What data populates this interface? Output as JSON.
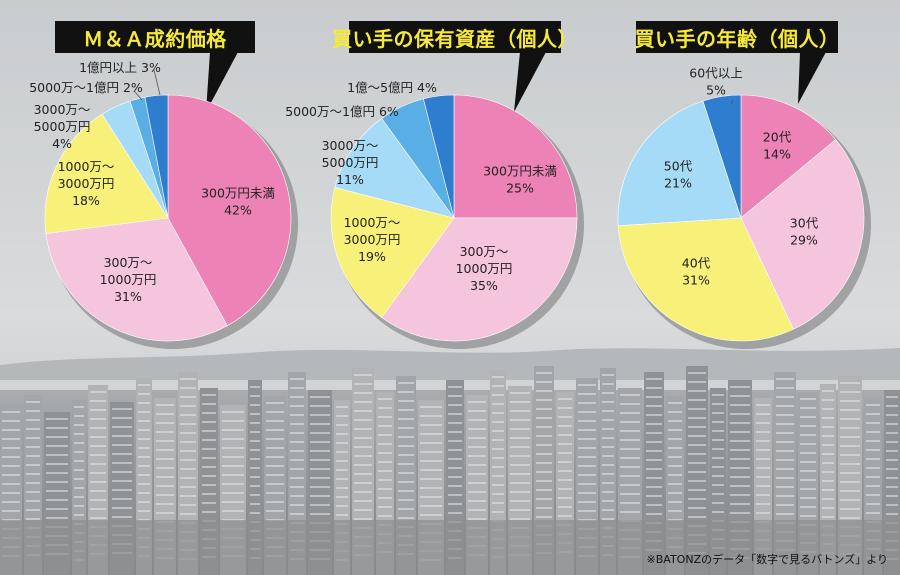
{
  "colors": {
    "pink_dark": "#ec82b5",
    "pink_light": "#f5c4dd",
    "yellow": "#f7f079",
    "light_blue": "#a6dbf7",
    "mid_blue": "#5aaee6",
    "dark_blue": "#2f7dcf",
    "title_bg": "#111111",
    "title_fg": "#f6e93a"
  },
  "source_note": "※BATONZのデータ「数字で見るバトンズ」より",
  "chart_data": [
    {
      "type": "pie",
      "title": "Ｍ＆Ａ成約価格",
      "slices": [
        {
          "label_lines": [
            "300万円未満",
            "42%"
          ],
          "value": 42,
          "color": "#ec82b5"
        },
        {
          "label_lines": [
            "300万～",
            "1000万円",
            "31%"
          ],
          "value": 31,
          "color": "#f5c4dd"
        },
        {
          "label_lines": [
            "1000万～",
            "3000万円",
            "18%"
          ],
          "value": 18,
          "color": "#f7f079"
        },
        {
          "label_lines": [
            "3000万～",
            "5000万円",
            "4%"
          ],
          "value": 4,
          "color": "#a6dbf7"
        },
        {
          "label_lines": [
            "5000万～1億円 2%"
          ],
          "value": 2,
          "color": "#5aaee6"
        },
        {
          "label_lines": [
            "1億円以上 3%"
          ],
          "value": 3,
          "color": "#2f7dcf"
        }
      ]
    },
    {
      "type": "pie",
      "title": "買い手の保有資産（個人）",
      "slices": [
        {
          "label_lines": [
            "300万円未満",
            "25%"
          ],
          "value": 25,
          "color": "#ec82b5"
        },
        {
          "label_lines": [
            "300万～",
            "1000万円",
            "35%"
          ],
          "value": 35,
          "color": "#f5c4dd"
        },
        {
          "label_lines": [
            "1000万～",
            "3000万円",
            "19%"
          ],
          "value": 19,
          "color": "#f7f079"
        },
        {
          "label_lines": [
            "3000万～",
            "5000万円",
            "11%"
          ],
          "value": 11,
          "color": "#a6dbf7"
        },
        {
          "label_lines": [
            "5000万～1億円 6%"
          ],
          "value": 6,
          "color": "#5aaee6"
        },
        {
          "label_lines": [
            "1億～5億円 4%"
          ],
          "value": 4,
          "color": "#2f7dcf"
        }
      ]
    },
    {
      "type": "pie",
      "title": "買い手の年齢（個人）",
      "slices": [
        {
          "label_lines": [
            "20代",
            "14%"
          ],
          "value": 14,
          "color": "#ec82b5"
        },
        {
          "label_lines": [
            "30代",
            "29%"
          ],
          "value": 29,
          "color": "#f5c4dd"
        },
        {
          "label_lines": [
            "40代",
            "31%"
          ],
          "value": 31,
          "color": "#f7f079"
        },
        {
          "label_lines": [
            "50代",
            "21%"
          ],
          "value": 21,
          "color": "#a6dbf7"
        },
        {
          "label_lines": [
            "60代以上",
            "5%"
          ],
          "value": 5,
          "color": "#2f7dcf"
        }
      ]
    }
  ]
}
